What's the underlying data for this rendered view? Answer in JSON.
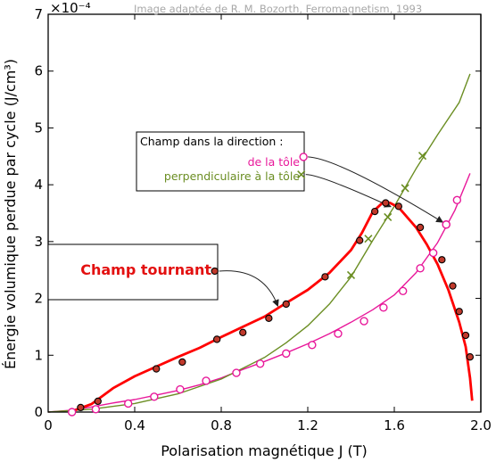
{
  "chart_data": {
    "type": "line",
    "xlabel": "Polarisation magnétique J (T)",
    "ylabel": "Énergie volumique perdue par cycle (J/cm³)",
    "y_multiplier": "×10⁻⁴",
    "credit": "Image adaptée de R. M. Bozorth, Ferromagnetism, 1993",
    "xlim": [
      0,
      2.0
    ],
    "ylim": [
      0,
      7
    ],
    "xticks": [
      "0",
      "0.4",
      "0.8",
      "1.2",
      "1.6",
      "2.0"
    ],
    "yticks": [
      "0",
      "1",
      "2",
      "3",
      "4",
      "5",
      "6",
      "7"
    ],
    "grid": false,
    "legend": {
      "title": "Champ dans la direction :",
      "entries": [
        "de la tôle",
        "perpendiculaire à la tôle"
      ]
    },
    "series": [
      {
        "name": "de la tôle",
        "color": "#e8189a",
        "marker": "circle-open",
        "curve": [
          [
            0.0,
            0.0
          ],
          [
            0.1,
            0.03
          ],
          [
            0.2,
            0.09
          ],
          [
            0.3,
            0.16
          ],
          [
            0.4,
            0.22
          ],
          [
            0.5,
            0.3
          ],
          [
            0.6,
            0.38
          ],
          [
            0.7,
            0.48
          ],
          [
            0.8,
            0.6
          ],
          [
            0.9,
            0.75
          ],
          [
            1.0,
            0.89
          ],
          [
            1.1,
            1.04
          ],
          [
            1.2,
            1.2
          ],
          [
            1.3,
            1.38
          ],
          [
            1.4,
            1.58
          ],
          [
            1.5,
            1.8
          ],
          [
            1.6,
            2.06
          ],
          [
            1.7,
            2.45
          ],
          [
            1.8,
            2.98
          ],
          [
            1.88,
            3.55
          ],
          [
            1.95,
            4.2
          ]
        ],
        "points": [
          [
            0.11,
            0.0
          ],
          [
            0.22,
            0.05
          ],
          [
            0.37,
            0.15
          ],
          [
            0.49,
            0.27
          ],
          [
            0.61,
            0.4
          ],
          [
            0.73,
            0.55
          ],
          [
            0.87,
            0.69
          ],
          [
            0.98,
            0.85
          ],
          [
            1.1,
            1.03
          ],
          [
            1.22,
            1.18
          ],
          [
            1.34,
            1.38
          ],
          [
            1.46,
            1.6
          ],
          [
            1.55,
            1.84
          ],
          [
            1.64,
            2.13
          ],
          [
            1.72,
            2.53
          ],
          [
            1.78,
            2.8
          ],
          [
            1.84,
            3.3
          ],
          [
            1.89,
            3.73
          ],
          [
            1.18,
            4.49
          ],
          [
            1.84,
            3.3
          ]
        ]
      },
      {
        "name": "perpendiculaire à la tôle",
        "color": "#6b8e23",
        "marker": "x",
        "curve": [
          [
            0.0,
            0.0
          ],
          [
            0.2,
            0.05
          ],
          [
            0.4,
            0.15
          ],
          [
            0.6,
            0.32
          ],
          [
            0.8,
            0.58
          ],
          [
            1.0,
            0.96
          ],
          [
            1.1,
            1.22
          ],
          [
            1.2,
            1.52
          ],
          [
            1.3,
            1.9
          ],
          [
            1.4,
            2.38
          ],
          [
            1.5,
            3.02
          ],
          [
            1.6,
            3.62
          ],
          [
            1.7,
            4.28
          ],
          [
            1.8,
            4.88
          ],
          [
            1.9,
            5.45
          ],
          [
            1.95,
            5.95
          ]
        ],
        "points": [
          [
            1.4,
            2.41
          ],
          [
            1.48,
            3.05
          ],
          [
            1.57,
            3.43
          ],
          [
            1.65,
            3.94
          ],
          [
            1.73,
            4.51
          ],
          [
            1.17,
            4.18
          ]
        ]
      },
      {
        "name": "Champ tournant",
        "color": "#ff0000",
        "marker": "circle-filled",
        "curve": [
          [
            0.1,
            0.0
          ],
          [
            0.2,
            0.14
          ],
          [
            0.3,
            0.42
          ],
          [
            0.4,
            0.63
          ],
          [
            0.5,
            0.8
          ],
          [
            0.6,
            0.97
          ],
          [
            0.7,
            1.13
          ],
          [
            0.8,
            1.32
          ],
          [
            0.9,
            1.5
          ],
          [
            1.0,
            1.68
          ],
          [
            1.1,
            1.92
          ],
          [
            1.2,
            2.15
          ],
          [
            1.3,
            2.45
          ],
          [
            1.4,
            2.85
          ],
          [
            1.45,
            3.15
          ],
          [
            1.5,
            3.52
          ],
          [
            1.55,
            3.7
          ],
          [
            1.58,
            3.68
          ],
          [
            1.62,
            3.6
          ],
          [
            1.7,
            3.25
          ],
          [
            1.75,
            2.95
          ],
          [
            1.8,
            2.6
          ],
          [
            1.85,
            2.15
          ],
          [
            1.9,
            1.58
          ],
          [
            1.93,
            1.15
          ],
          [
            1.95,
            0.6
          ],
          [
            1.96,
            0.2
          ]
        ],
        "points": [
          [
            0.15,
            0.08
          ],
          [
            0.23,
            0.19
          ],
          [
            0.5,
            0.76
          ],
          [
            0.62,
            0.88
          ],
          [
            0.78,
            1.28
          ],
          [
            0.9,
            1.4
          ],
          [
            1.02,
            1.65
          ],
          [
            1.1,
            1.9
          ],
          [
            1.28,
            2.38
          ],
          [
            1.44,
            3.02
          ],
          [
            1.51,
            3.53
          ],
          [
            1.56,
            3.68
          ],
          [
            1.62,
            3.62
          ],
          [
            1.72,
            3.25
          ],
          [
            1.82,
            2.68
          ],
          [
            1.87,
            2.22
          ],
          [
            1.9,
            1.77
          ],
          [
            1.93,
            1.35
          ],
          [
            1.95,
            0.97
          ],
          [
            0.77,
            2.48
          ]
        ]
      }
    ],
    "annotation": "Champ tournant"
  }
}
